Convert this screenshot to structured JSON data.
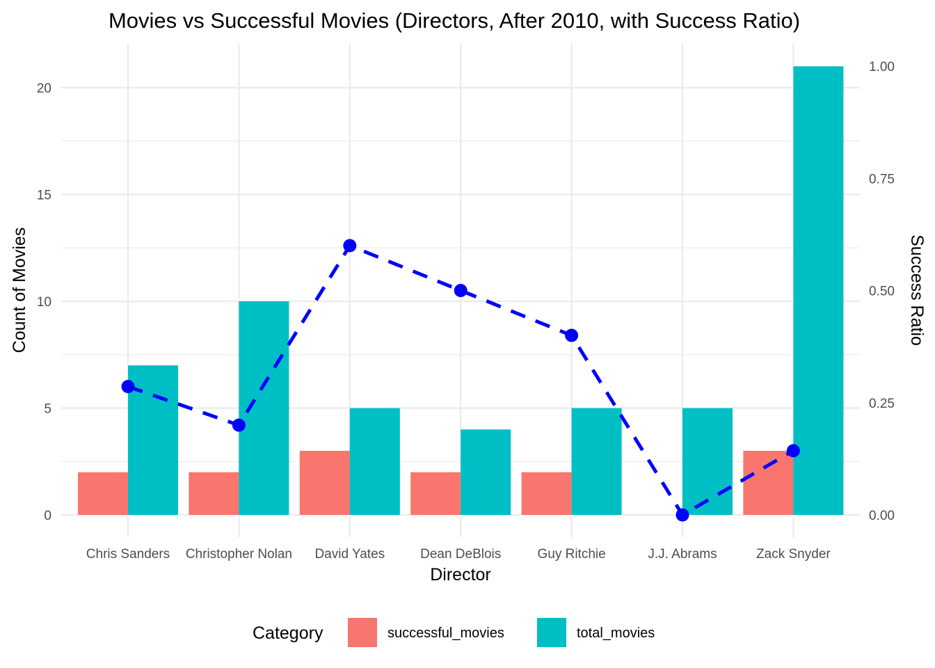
{
  "chart_data": {
    "type": "bar",
    "title": "Movies vs Successful Movies (Directors, After 2010, with Success Ratio)",
    "xlabel": "Director",
    "ylabel": "Count of Movies",
    "y2label": "Success Ratio",
    "ylim": [
      0,
      21
    ],
    "y2lim": [
      0,
      1
    ],
    "yticks": [
      0,
      5,
      10,
      15,
      20
    ],
    "y2ticks": [
      "0.00",
      "0.25",
      "0.50",
      "0.75",
      "1.00"
    ],
    "grid": true,
    "legend_position": "bottom",
    "legend_title": "Category",
    "categories": [
      "Chris Sanders",
      "Christopher Nolan",
      "David Yates",
      "Dean DeBlois",
      "Guy Ritchie",
      "J.J. Abrams",
      "Zack Snyder"
    ],
    "series": [
      {
        "name": "successful_movies",
        "type": "bar",
        "color": "#F8766D",
        "values": [
          2,
          2,
          3,
          2,
          2,
          0,
          3
        ]
      },
      {
        "name": "total_movies",
        "type": "bar",
        "color": "#00BFC4",
        "values": [
          7,
          10,
          5,
          4,
          5,
          5,
          21
        ]
      },
      {
        "type": "line",
        "axis": "secondary",
        "style": "dashed",
        "color": "#0000FF",
        "values": [
          0.286,
          0.2,
          0.6,
          0.5,
          0.4,
          0.0,
          0.143
        ]
      }
    ]
  }
}
